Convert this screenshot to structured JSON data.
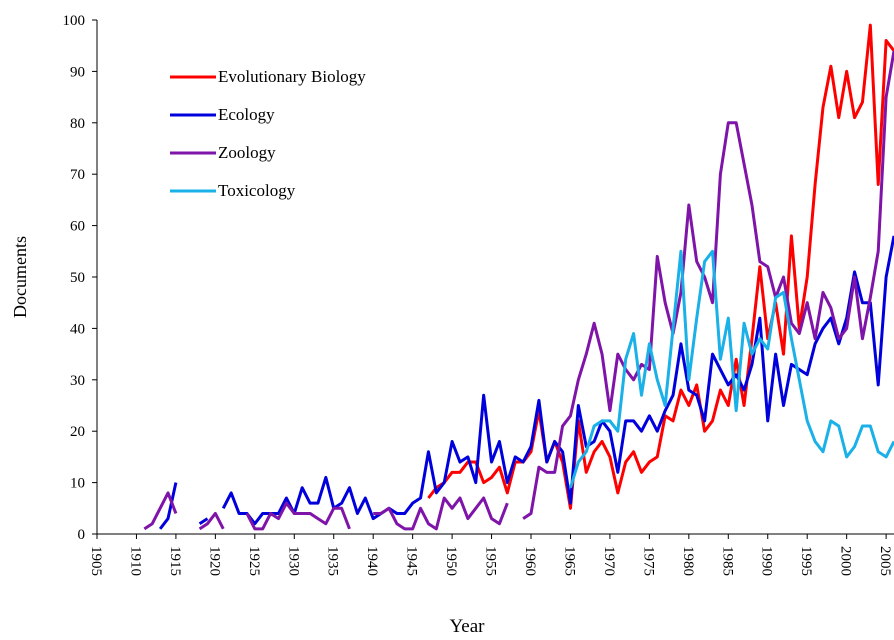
{
  "chart_data": {
    "type": "line",
    "xlabel": "Year",
    "ylabel": "Documents",
    "xlim": [
      1905,
      2006
    ],
    "xticks": [
      1905,
      1910,
      1915,
      1920,
      1925,
      1930,
      1935,
      1940,
      1945,
      1950,
      1955,
      1960,
      1965,
      1970,
      1975,
      1980,
      1985,
      1990,
      1995,
      2000,
      2005
    ],
    "ylim": [
      0,
      100
    ],
    "yticks": [
      0,
      10,
      20,
      30,
      40,
      50,
      60,
      70,
      80,
      90,
      100
    ],
    "legend": "upper left",
    "x": [
      1911,
      1912,
      1913,
      1914,
      1915,
      1916,
      1917,
      1918,
      1919,
      1920,
      1921,
      1922,
      1923,
      1924,
      1925,
      1926,
      1927,
      1928,
      1929,
      1930,
      1931,
      1932,
      1933,
      1934,
      1935,
      1936,
      1937,
      1938,
      1939,
      1940,
      1941,
      1942,
      1943,
      1944,
      1945,
      1946,
      1947,
      1948,
      1949,
      1950,
      1951,
      1952,
      1953,
      1954,
      1955,
      1956,
      1957,
      1958,
      1959,
      1960,
      1961,
      1962,
      1963,
      1964,
      1965,
      1966,
      1967,
      1968,
      1969,
      1970,
      1971,
      1972,
      1973,
      1974,
      1975,
      1976,
      1977,
      1978,
      1979,
      1980,
      1981,
      1982,
      1983,
      1984,
      1985,
      1986,
      1987,
      1988,
      1989,
      1990,
      1991,
      1992,
      1993,
      1994,
      1995,
      1996,
      1997,
      1998,
      1999,
      2000,
      2001,
      2002,
      2003,
      2004,
      2005,
      2006
    ],
    "series": [
      {
        "name": "Evolutionary Biology",
        "color": "#ff0000",
        "values": [
          null,
          null,
          null,
          null,
          null,
          null,
          null,
          null,
          null,
          null,
          null,
          null,
          null,
          null,
          null,
          null,
          null,
          null,
          null,
          null,
          null,
          null,
          null,
          null,
          null,
          null,
          null,
          null,
          null,
          null,
          null,
          null,
          null,
          null,
          null,
          null,
          7,
          9,
          10,
          12,
          12,
          14,
          14,
          10,
          11,
          13,
          8,
          14,
          14,
          16,
          24,
          14,
          18,
          14,
          5,
          22,
          12,
          16,
          18,
          15,
          8,
          14,
          16,
          12,
          14,
          15,
          23,
          22,
          28,
          25,
          29,
          20,
          22,
          28,
          25,
          34,
          25,
          38,
          52,
          38,
          45,
          35,
          58,
          40,
          50,
          68,
          83,
          91,
          81,
          90,
          81,
          84,
          99,
          68,
          96,
          94
        ]
      },
      {
        "name": "Ecology",
        "color": "#0000dd",
        "values": [
          null,
          null,
          1,
          3,
          10,
          null,
          null,
          2,
          3,
          null,
          5,
          8,
          4,
          4,
          2,
          4,
          4,
          4,
          7,
          4,
          9,
          6,
          6,
          11,
          5,
          6,
          9,
          4,
          7,
          3,
          4,
          5,
          4,
          4,
          6,
          7,
          16,
          8,
          10,
          18,
          14,
          15,
          10,
          27,
          14,
          18,
          10,
          15,
          14,
          17,
          26,
          14,
          18,
          16,
          6,
          25,
          17,
          18,
          22,
          20,
          12,
          22,
          22,
          20,
          23,
          20,
          24,
          27,
          37,
          28,
          27,
          22,
          35,
          32,
          29,
          31,
          28,
          33,
          42,
          22,
          35,
          25,
          33,
          32,
          31,
          37,
          40,
          42,
          37,
          42,
          51,
          45,
          45,
          29,
          50,
          58
        ]
      },
      {
        "name": "Zoology",
        "color": "#7f14a8",
        "values": [
          1,
          2,
          5,
          8,
          4,
          null,
          null,
          1,
          2,
          4,
          1,
          null,
          null,
          4,
          1,
          1,
          4,
          3,
          6,
          4,
          4,
          4,
          3,
          2,
          5,
          5,
          1,
          null,
          null,
          4,
          4,
          5,
          2,
          1,
          1,
          5,
          2,
          1,
          7,
          5,
          7,
          3,
          5,
          7,
          3,
          2,
          6,
          null,
          3,
          4,
          13,
          12,
          12,
          21,
          23,
          30,
          35,
          41,
          35,
          24,
          35,
          32,
          30,
          33,
          32,
          54,
          45,
          39,
          47,
          64,
          53,
          50,
          45,
          70,
          80,
          80,
          72,
          64,
          53,
          52,
          46,
          50,
          41,
          39,
          45,
          38,
          47,
          44,
          38,
          40,
          50,
          38,
          46,
          55,
          85,
          94
        ]
      },
      {
        "name": "Toxicology",
        "color": "#1ab0e8",
        "values": [
          null,
          null,
          null,
          null,
          null,
          null,
          null,
          null,
          null,
          null,
          null,
          null,
          null,
          null,
          null,
          null,
          null,
          null,
          null,
          null,
          null,
          null,
          null,
          null,
          null,
          null,
          null,
          null,
          null,
          null,
          null,
          null,
          null,
          null,
          null,
          null,
          null,
          null,
          null,
          null,
          null,
          null,
          null,
          null,
          null,
          null,
          null,
          null,
          null,
          null,
          null,
          null,
          null,
          null,
          9,
          14,
          16,
          21,
          22,
          22,
          20,
          34,
          39,
          27,
          37,
          30,
          25,
          40,
          55,
          30,
          42,
          53,
          55,
          34,
          42,
          24,
          41,
          35,
          38,
          36,
          46,
          47,
          38,
          30,
          22,
          18,
          16,
          22,
          21,
          15,
          17,
          21,
          21,
          16,
          15,
          18
        ]
      }
    ]
  }
}
